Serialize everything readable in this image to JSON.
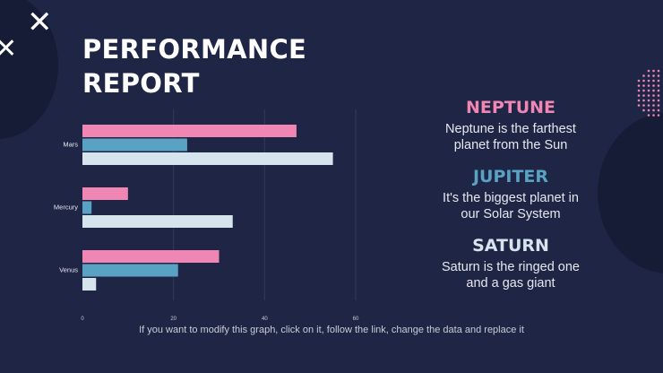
{
  "title": {
    "line1": "PERFORMANCE",
    "line2": "REPORT"
  },
  "chart_data": {
    "type": "bar",
    "orientation": "horizontal",
    "categories": [
      "Mars",
      "Mercury",
      "Venus"
    ],
    "series": [
      {
        "values": [
          47,
          10,
          30
        ],
        "color": "#ef86b4"
      },
      {
        "values": [
          23,
          2,
          21
        ],
        "color": "#5aa2c4"
      },
      {
        "values": [
          55,
          33,
          3
        ],
        "color": "#d6e4ee"
      }
    ],
    "x_ticks": [
      "0",
      "20",
      "40",
      "60"
    ],
    "xlim": [
      0,
      60
    ],
    "grid": true,
    "legend": "none"
  },
  "panels": [
    {
      "heading": "NEPTUNE",
      "color": "#ef86b4",
      "line1": "Neptune is the farthest",
      "line2": "planet from the Sun"
    },
    {
      "heading": "JUPITER",
      "color": "#5aa2c4",
      "line1": "It's the biggest planet in",
      "line2": "our Solar System"
    },
    {
      "heading": "SATURN",
      "color": "#d6e4ee",
      "line1": "Saturn is the ringed one",
      "line2": "and a gas giant"
    }
  ],
  "footer": "If you want to modify this graph, click on it, follow the link, change the data and replace it",
  "colors": {
    "background": "#1f2545",
    "decor_dark": "#171c36",
    "dots": "#ef86b4",
    "grid": "#34395a"
  }
}
